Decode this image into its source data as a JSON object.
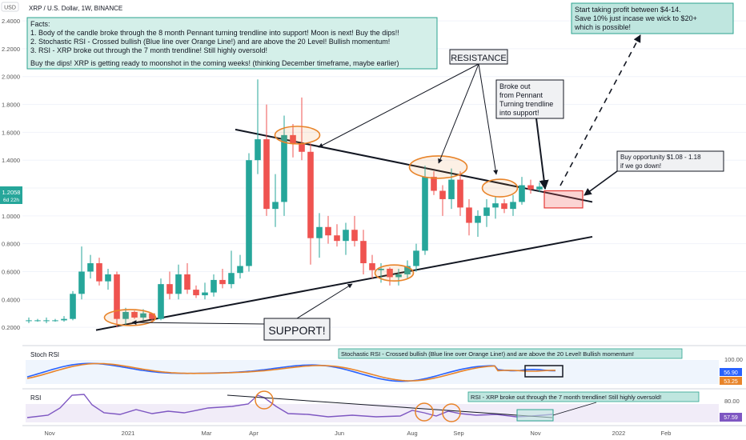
{
  "header": {
    "usd_badge": "USD",
    "symbol_line": "XRP / U.S. Dollar, 1W, BINANCE"
  },
  "price_axis": {
    "ticks": [
      "2.4000",
      "2.2000",
      "2.0000",
      "1.8000",
      "1.6000",
      "1.4000",
      "1.2000",
      "1.0000",
      "0.8000",
      "0.6000",
      "0.4000",
      "0.2000"
    ]
  },
  "current_price": {
    "value": "1.2058",
    "countdown": "6d 22h"
  },
  "time_axis": {
    "labels": [
      "Nov",
      "2021",
      "Mar",
      "Apr",
      "Jun",
      "Aug",
      "Sep",
      "Nov",
      "2022",
      "Feb"
    ]
  },
  "facts_box": {
    "lines": [
      "Facts:",
      "1. Body of the candle broke through the 8 month Pennant turning trendline into support! Moon is next! Buy the dips!!",
      "2. Stochastic RSI - Crossed bullish (Blue line over Orange Line!) and are above the 20 Level! Bullish momentum!",
      "3. RSI - XRP broke out through the 7 month trendline! Still highly oversold!",
      "",
      "Buy the dips! XRP is getting ready to moonshot in the coming weeks! (thinking December timeframe, maybe earlier)"
    ]
  },
  "profit_box": {
    "lines": [
      "Start taking profit between $4-14.",
      "Save 10% just incase we wick to $20+",
      "which is possible!"
    ]
  },
  "resistance_label": "RESISTANCE",
  "support_label": "SUPPORT!",
  "breakout_box": {
    "lines": [
      "Broke out",
      "from Pennant",
      "Turning trendline",
      "into support!"
    ]
  },
  "buy_box": {
    "lines": [
      "Buy opportunity $1.08 - 1.18",
      "if we go down!"
    ]
  },
  "stoch_panel": {
    "title": "Stoch RSI",
    "annotation": "Stochastic RSI - Crossed bullish (Blue line over Orange Line!) and are above the 20 Level! Bullish momentum!",
    "axis_top": "100.00",
    "value_k": "56.90",
    "value_d": "53.25"
  },
  "rsi_panel": {
    "title": "RSI",
    "annotation": "RSI - XRP broke out through the 7 month trendline! Still highly oversold!",
    "axis_top": "80.00",
    "value": "57.59"
  },
  "colors": {
    "up": "#26a69a",
    "down": "#ef5350",
    "orange": "#e8842a",
    "blue": "#2962ff",
    "purple": "#7e57c2",
    "price_label": "#26a69a"
  },
  "chart_data": {
    "type": "candlestick",
    "title": "XRP / U.S. Dollar, 1W, BINANCE",
    "ylim": [
      0.08,
      2.55
    ],
    "candles": [
      [
        0.25,
        0.27,
        0.23,
        0.25
      ],
      [
        0.25,
        0.26,
        0.24,
        0.25
      ],
      [
        0.25,
        0.27,
        0.23,
        0.25
      ],
      [
        0.25,
        0.26,
        0.24,
        0.25
      ],
      [
        0.25,
        0.28,
        0.24,
        0.26
      ],
      [
        0.26,
        0.46,
        0.25,
        0.44
      ],
      [
        0.44,
        0.78,
        0.4,
        0.6
      ],
      [
        0.6,
        0.72,
        0.55,
        0.66
      ],
      [
        0.66,
        0.7,
        0.5,
        0.53
      ],
      [
        0.53,
        0.62,
        0.47,
        0.58
      ],
      [
        0.58,
        0.6,
        0.2,
        0.26
      ],
      [
        0.26,
        0.34,
        0.21,
        0.31
      ],
      [
        0.31,
        0.32,
        0.26,
        0.27
      ],
      [
        0.27,
        0.33,
        0.25,
        0.3
      ],
      [
        0.3,
        0.29,
        0.23,
        0.26
      ],
      [
        0.26,
        0.55,
        0.25,
        0.51
      ],
      [
        0.51,
        0.6,
        0.4,
        0.44
      ],
      [
        0.44,
        0.65,
        0.4,
        0.58
      ],
      [
        0.58,
        0.66,
        0.44,
        0.47
      ],
      [
        0.47,
        0.5,
        0.41,
        0.43
      ],
      [
        0.43,
        0.52,
        0.4,
        0.45
      ],
      [
        0.45,
        0.58,
        0.42,
        0.54
      ],
      [
        0.54,
        0.62,
        0.48,
        0.51
      ],
      [
        0.51,
        0.75,
        0.48,
        0.59
      ],
      [
        0.59,
        0.72,
        0.55,
        0.64
      ],
      [
        0.64,
        1.45,
        0.6,
        1.4
      ],
      [
        1.4,
        1.98,
        1.3,
        1.55
      ],
      [
        1.55,
        1.8,
        1.0,
        1.05
      ],
      [
        1.05,
        1.3,
        0.92,
        1.1
      ],
      [
        1.1,
        1.72,
        1.0,
        1.58
      ],
      [
        1.58,
        1.66,
        1.42,
        1.52
      ],
      [
        1.52,
        1.85,
        1.4,
        1.46
      ],
      [
        1.46,
        1.52,
        0.65,
        0.84
      ],
      [
        0.84,
        1.02,
        0.7,
        0.92
      ],
      [
        0.92,
        1.0,
        0.8,
        0.86
      ],
      [
        0.86,
        0.94,
        0.78,
        0.82
      ],
      [
        0.82,
        0.95,
        0.72,
        0.9
      ],
      [
        0.9,
        1.0,
        0.78,
        0.82
      ],
      [
        0.82,
        0.9,
        0.58,
        0.66
      ],
      [
        0.66,
        0.72,
        0.55,
        0.61
      ],
      [
        0.61,
        0.66,
        0.52,
        0.62
      ],
      [
        0.62,
        0.63,
        0.5,
        0.56
      ],
      [
        0.56,
        0.62,
        0.5,
        0.58
      ],
      [
        0.58,
        0.68,
        0.55,
        0.64
      ],
      [
        0.64,
        0.8,
        0.6,
        0.75
      ],
      [
        0.75,
        1.36,
        0.72,
        1.28
      ],
      [
        1.28,
        1.32,
        1.15,
        1.18
      ],
      [
        1.18,
        1.22,
        1.0,
        1.12
      ],
      [
        1.12,
        1.34,
        1.05,
        1.26
      ],
      [
        1.26,
        1.32,
        1.0,
        1.06
      ],
      [
        1.06,
        1.12,
        0.86,
        0.95
      ],
      [
        0.95,
        1.04,
        0.85,
        1.0
      ],
      [
        1.0,
        1.12,
        0.92,
        1.06
      ],
      [
        1.06,
        1.14,
        0.98,
        1.09
      ],
      [
        1.09,
        1.12,
        1.02,
        1.05
      ],
      [
        1.05,
        1.15,
        1.0,
        1.1
      ],
      [
        1.1,
        1.28,
        1.08,
        1.22
      ],
      [
        1.22,
        1.26,
        1.16,
        1.19
      ],
      [
        1.19,
        1.24,
        1.17,
        1.21
      ]
    ]
  }
}
